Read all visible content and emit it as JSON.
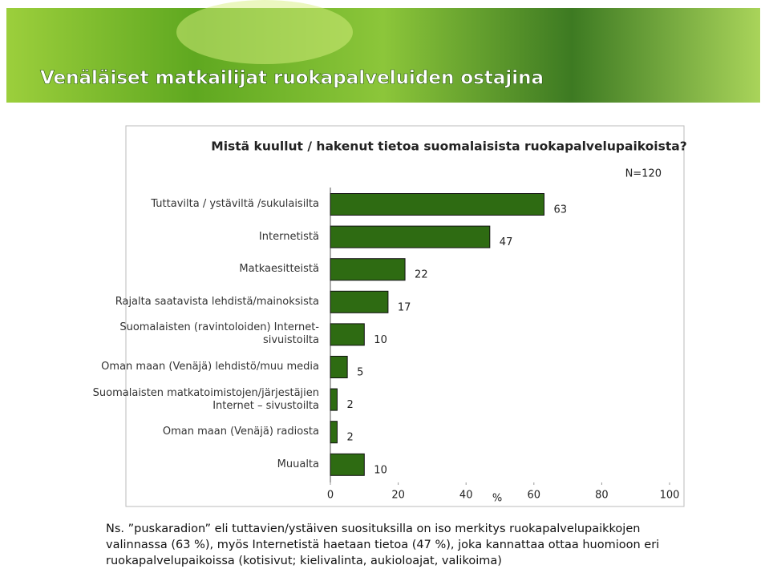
{
  "slide_title": "Venäläiset matkailijat ruokapalveluiden ostajina",
  "chart_data": {
    "type": "bar",
    "orientation": "horizontal",
    "title": "Mistä kuullut / hakenut tietoa suomalaisista ruokapalvelupaikoista?",
    "annotation": "N=120",
    "categories": [
      "Tuttavilta / ystäviltä /sukulaisilta",
      "Internetistä",
      "Matkaesitteistä",
      "Rajalta saatavista lehdistä/mainoksista",
      "Suomalaisten (ravintoloiden) Internet-\nsivuistoilta",
      "Oman maan (Venäjä) lehdistö/muu media",
      "Suomalaisten matkatoimistojen/järjestäjien\nInternet – sivustoilta",
      "Oman maan (Venäjä) radiosta",
      "Muualta"
    ],
    "values": [
      63,
      47,
      22,
      17,
      10,
      5,
      2,
      2,
      10
    ],
    "color": "#2e6b12",
    "xlabel": "%",
    "xlim": [
      0,
      100
    ],
    "xticks": [
      0,
      20,
      40,
      60,
      80,
      100
    ]
  },
  "footnote": "Ns. ”puskaradion” eli tuttavien/ystäiven suosituksilla on iso merkitys ruokapalvelupaikkojen valinnassa (63 %), myös Internetistä haetaan tietoa (47 %), joka kannattaa ottaa huomioon eri ruokapalvelupaikoissa (kotisivut; kielivalinta, aukioloajat, valikoima)"
}
